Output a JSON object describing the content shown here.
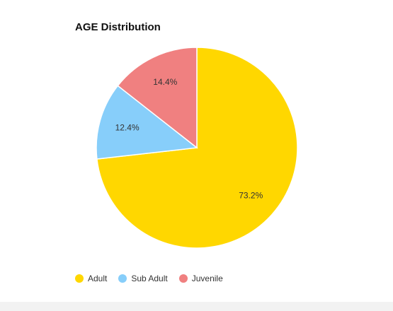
{
  "chart_data": {
    "type": "pie",
    "title": "AGE Distribution",
    "categories": [
      "Adult",
      "Sub Adult",
      "Juvenile"
    ],
    "values": [
      73.2,
      12.4,
      14.4
    ],
    "labels": [
      "73.2%",
      "12.4%",
      "14.4%"
    ],
    "colors": [
      "#FFD700",
      "#87CEFA",
      "#F08080"
    ],
    "start_angle_deg": 0,
    "direction": "clockwise",
    "legend_position": "bottom-left"
  }
}
